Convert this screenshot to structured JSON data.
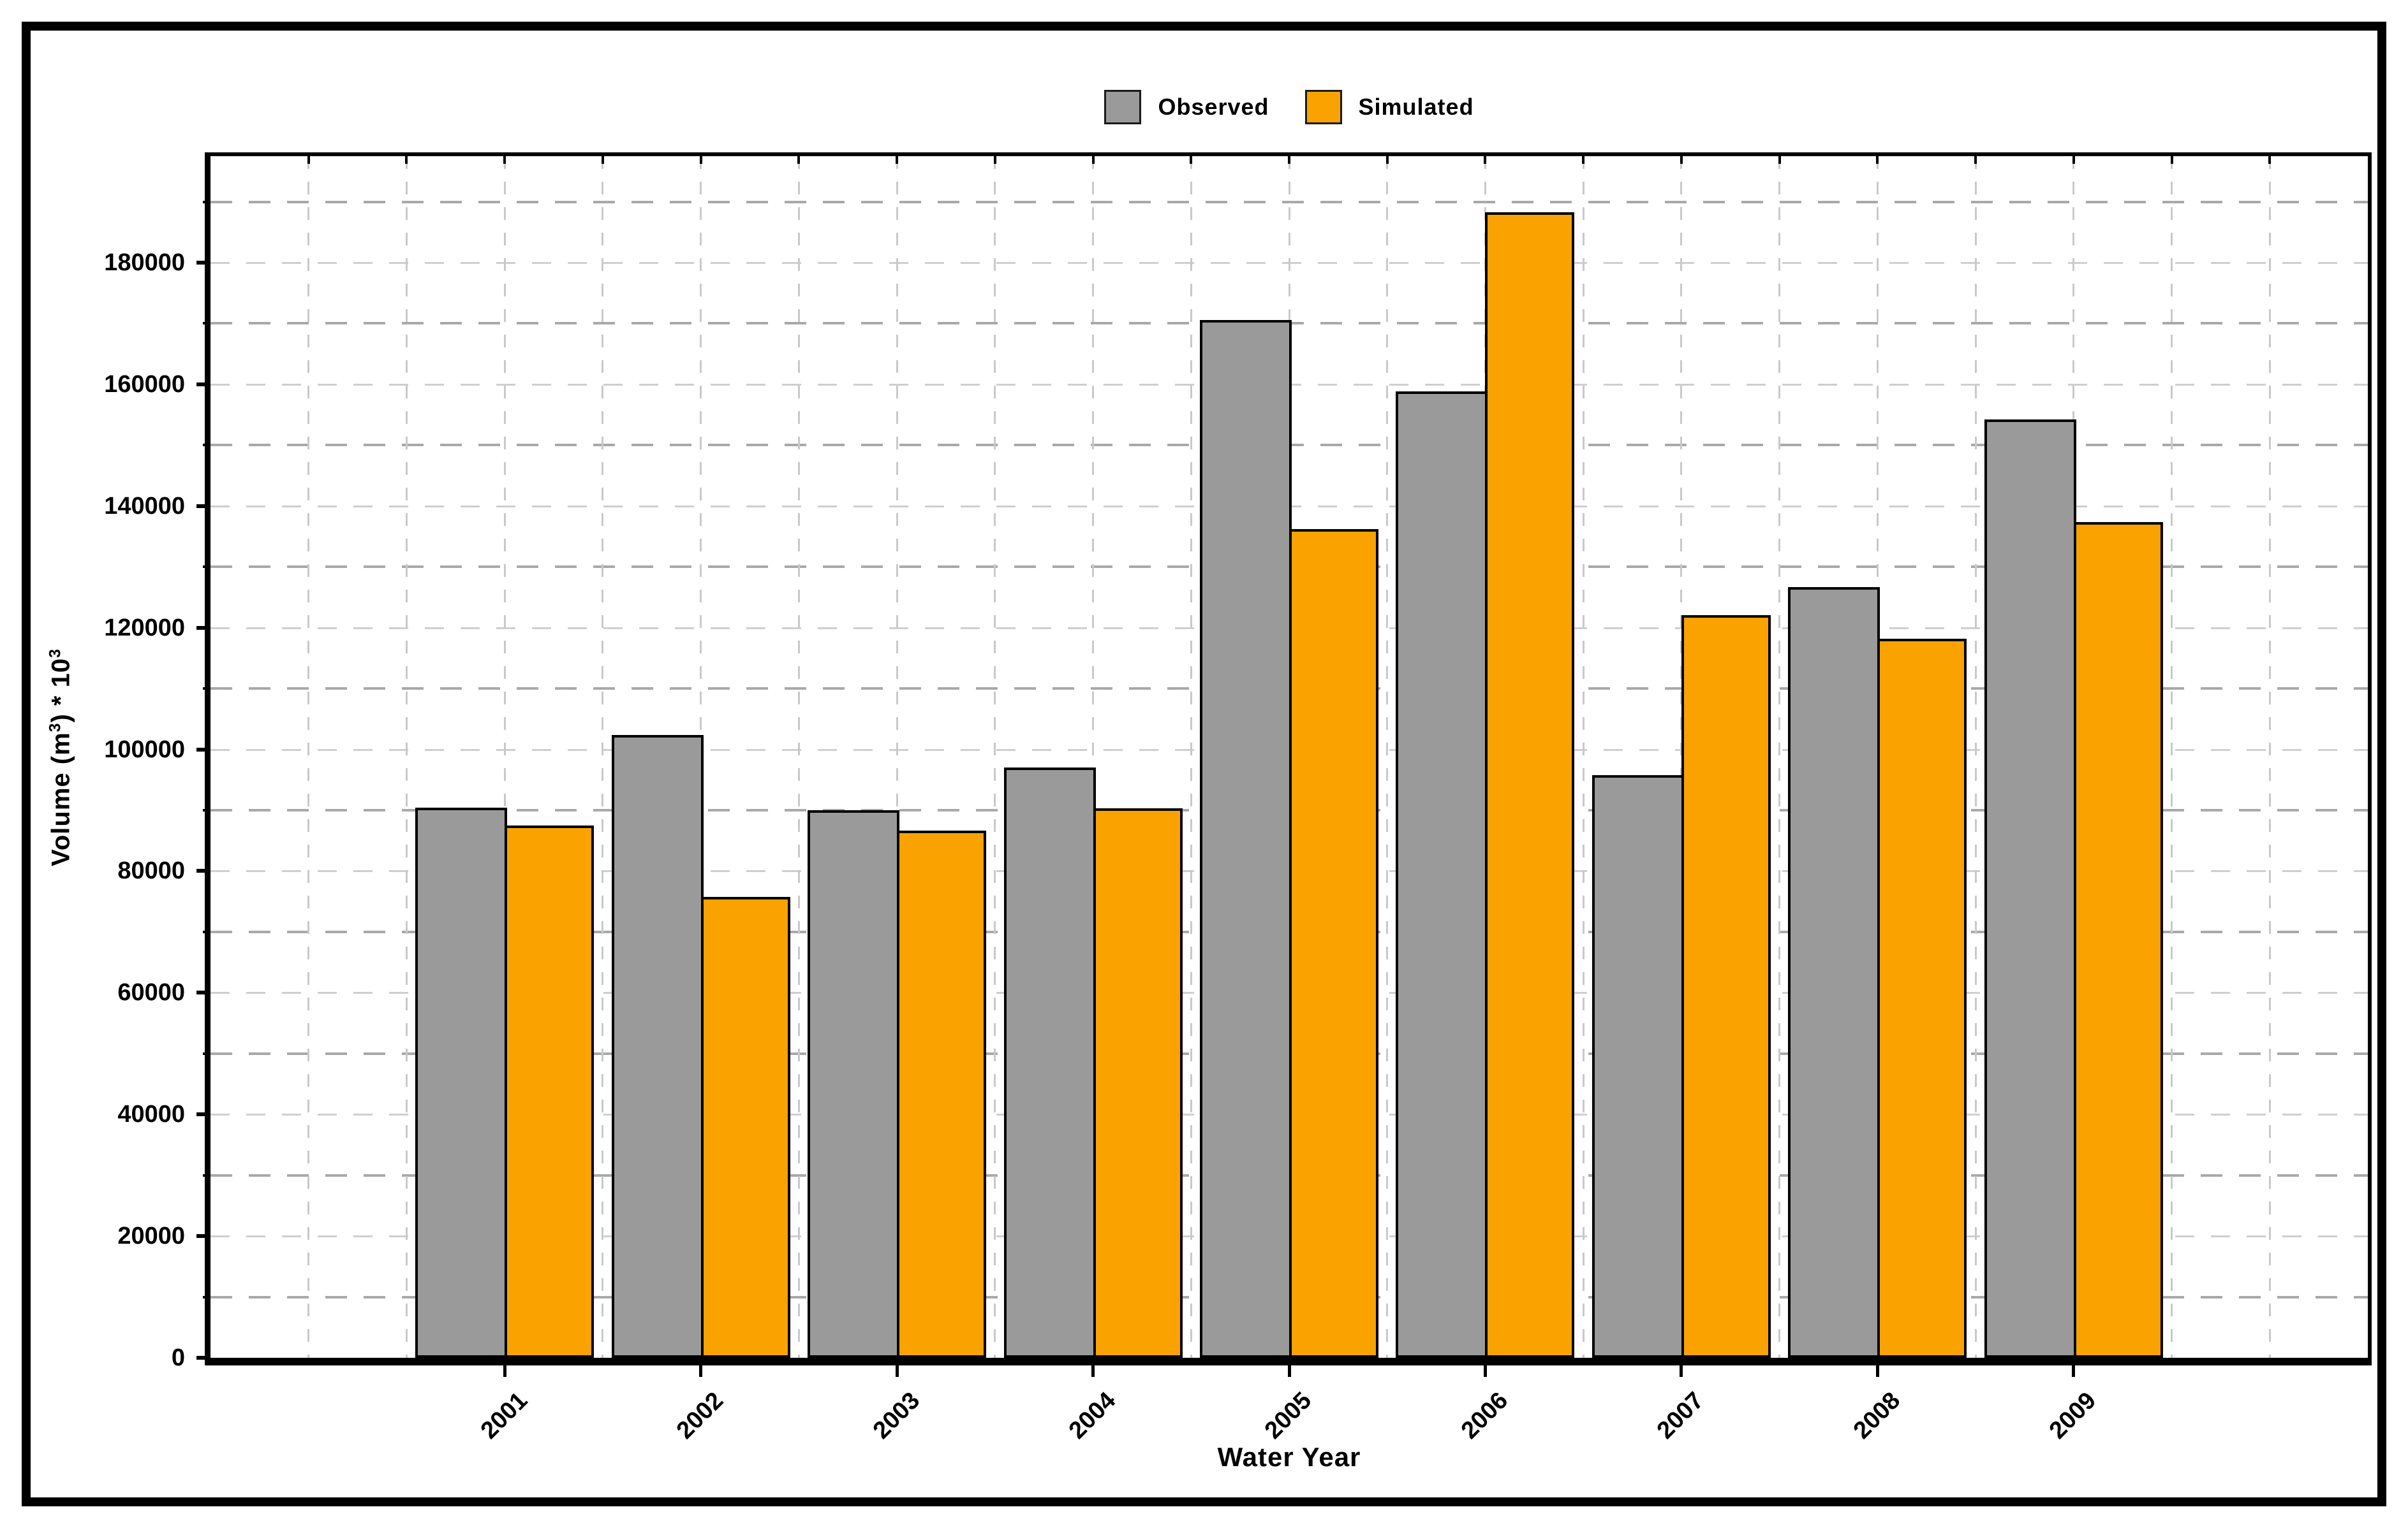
{
  "figure": {
    "background": "#ffffff",
    "border_color": "#000000"
  },
  "legend": {
    "items": [
      {
        "label": "Observed",
        "color": "#9a9a9a"
      },
      {
        "label": "Simulated",
        "color": "#faa200"
      }
    ]
  },
  "axes": {
    "x_title": "Water Year",
    "y_title": {
      "prefix": "Volume (m",
      "sup1": "3",
      "mid": ") * 10",
      "sup2": "3"
    },
    "ytick_labels": [
      "0",
      "20000",
      "40000",
      "60000",
      "80000",
      "100000",
      "120000",
      "140000",
      "160000",
      "180000"
    ],
    "grid_color_minor": "#a9a9a9",
    "grid_color_major": "#cfcfcf"
  },
  "chart_data": {
    "type": "bar",
    "title": "",
    "xlabel": "Water Year",
    "ylabel": "Volume (m3) * 10^3",
    "categories": [
      "2001",
      "2002",
      "2003",
      "2004",
      "2005",
      "2006",
      "2007",
      "2008",
      "2009"
    ],
    "series": [
      {
        "name": "Observed",
        "color": "#9a9a9a",
        "values": [
          90400,
          102400,
          90000,
          97000,
          170600,
          158800,
          95800,
          126700,
          154200
        ]
      },
      {
        "name": "Simulated",
        "color": "#faa200",
        "values": [
          87500,
          75800,
          86600,
          90300,
          136200,
          188300,
          122100,
          118200,
          137400
        ]
      }
    ],
    "ylim": [
      0,
      197500
    ],
    "ytick_major": 20000,
    "ytick_minor": 10000,
    "grid": "dashed",
    "legend_position": "top-center",
    "bar_border_color": "#000000"
  }
}
